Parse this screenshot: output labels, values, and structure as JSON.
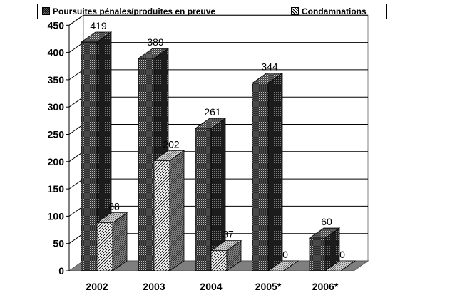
{
  "legend": {
    "items": [
      {
        "label": "Poursuites pénales/produites en preuve",
        "pattern": "checker-dark"
      },
      {
        "label": "Condamnations",
        "pattern": "hatch-light"
      }
    ]
  },
  "chart_data": {
    "type": "bar",
    "categories": [
      "2002",
      "2003",
      "2004",
      "2005*",
      "2006*"
    ],
    "series": [
      {
        "name": "Poursuites pénales/produites en preuve",
        "values": [
          419,
          389,
          261,
          344,
          60
        ]
      },
      {
        "name": "Condamnations",
        "values": [
          88,
          202,
          37,
          0,
          0
        ]
      }
    ],
    "title": "",
    "xlabel": "",
    "ylabel": "",
    "ylim": [
      0,
      450
    ],
    "yticks": [
      0,
      50,
      100,
      150,
      200,
      250,
      300,
      350,
      400,
      450
    ],
    "grid": true,
    "legend_position": "top",
    "three_d": true
  }
}
